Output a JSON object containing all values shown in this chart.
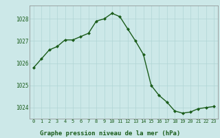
{
  "x": [
    0,
    1,
    2,
    3,
    4,
    5,
    6,
    7,
    8,
    9,
    10,
    11,
    12,
    13,
    14,
    15,
    16,
    17,
    18,
    19,
    20,
    21,
    22,
    23
  ],
  "y": [
    1025.8,
    1026.2,
    1026.6,
    1026.75,
    1027.05,
    1027.05,
    1027.2,
    1027.35,
    1027.9,
    1028.0,
    1028.25,
    1028.1,
    1027.55,
    1027.0,
    1026.4,
    1025.0,
    1024.55,
    1024.25,
    1023.85,
    1023.75,
    1023.8,
    1023.95,
    1024.0,
    1024.05
  ],
  "ylim": [
    1023.5,
    1028.6
  ],
  "yticks": [
    1024,
    1025,
    1026,
    1027,
    1028
  ],
  "xticks": [
    0,
    1,
    2,
    3,
    4,
    5,
    6,
    7,
    8,
    9,
    10,
    11,
    12,
    13,
    14,
    15,
    16,
    17,
    18,
    19,
    20,
    21,
    22,
    23
  ],
  "line_color": "#1a5c1a",
  "marker_color": "#1a5c1a",
  "bg_color": "#cce8e8",
  "grid_color": "#b0d4d4",
  "xlabel": "Graphe pression niveau de la mer (hPa)",
  "xlabel_color": "#1a5c1a",
  "tick_color": "#1a5c1a",
  "spine_color": "#888888",
  "marker": "D",
  "marker_size": 2.0,
  "linewidth": 1.0
}
